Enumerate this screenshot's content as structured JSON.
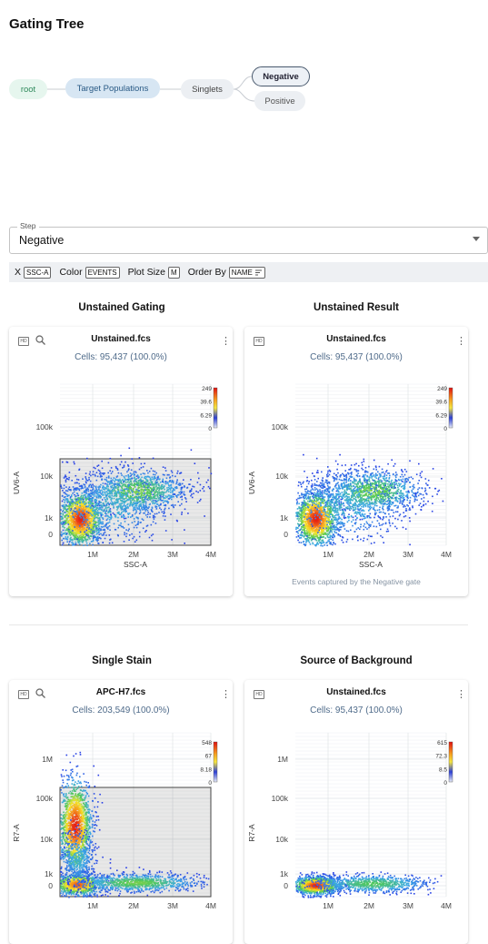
{
  "page": {
    "title": "Gating Tree"
  },
  "gating_tree": {
    "nodes": [
      {
        "label": "root"
      },
      {
        "label": "Target Populations"
      },
      {
        "label": "Singlets"
      },
      {
        "label": "Negative"
      },
      {
        "label": "Positive"
      }
    ]
  },
  "step": {
    "label": "Step",
    "value": "Negative"
  },
  "toolbar": {
    "x_label": "X",
    "x_value": "SSC-A",
    "color_label": "Color",
    "color_value": "EVENTS",
    "size_label": "Plot Size",
    "size_value": "M",
    "order_label": "Order By",
    "order_value": "NAME"
  },
  "icons": {
    "hd": "hd-icon",
    "zoom": "zoom-icon",
    "menu": "more-vertical-icon",
    "sort": "sort-icon",
    "caret": "dropdown-caret-icon"
  },
  "panels": [
    {
      "section": "Unstained Gating",
      "file": "Unstained.fcs",
      "cells": "Cells: 95,437 (100.0%)",
      "y_label": "UV6-A",
      "x_label": "SSC-A",
      "y_ticks": [
        "100k",
        "10k",
        "1k",
        "0"
      ],
      "x_ticks": [
        "1M",
        "2M",
        "3M",
        "4M"
      ],
      "scale": [
        "249",
        "39.6",
        "6.29",
        "0"
      ],
      "caption": ""
    },
    {
      "section": "Unstained Result",
      "file": "Unstained.fcs",
      "cells": "Cells: 95,437 (100.0%)",
      "y_label": "UV6-A",
      "x_label": "SSC-A",
      "y_ticks": [
        "100k",
        "10k",
        "1k",
        "0"
      ],
      "x_ticks": [
        "1M",
        "2M",
        "3M",
        "4M"
      ],
      "scale": [
        "249",
        "39.6",
        "6.29",
        "0"
      ],
      "caption": "Events captured by the Negative gate"
    },
    {
      "section": "Single Stain",
      "file": "APC-H7.fcs",
      "cells": "Cells: 203,549 (100.0%)",
      "y_label": "R7-A",
      "x_label": "",
      "y_ticks": [
        "1M",
        "100k",
        "10k",
        "1k",
        "0"
      ],
      "x_ticks": [
        "1M",
        "2M",
        "3M",
        "4M"
      ],
      "scale": [
        "548",
        "67",
        "8.18",
        "0"
      ],
      "caption": ""
    },
    {
      "section": "Source of Background",
      "file": "Unstained.fcs",
      "cells": "Cells: 95,437 (100.0%)",
      "y_label": "R7-A",
      "x_label": "",
      "y_ticks": [
        "1M",
        "100k",
        "10k",
        "1k",
        "0"
      ],
      "x_ticks": [
        "1M",
        "2M",
        "3M",
        "4M"
      ],
      "scale": [
        "615",
        "72.3",
        "8.5",
        "0"
      ],
      "caption": ""
    }
  ],
  "colors": {
    "accent": "#4f6b8a",
    "density_low": "#3344dd",
    "density_high": "#ee2200"
  }
}
